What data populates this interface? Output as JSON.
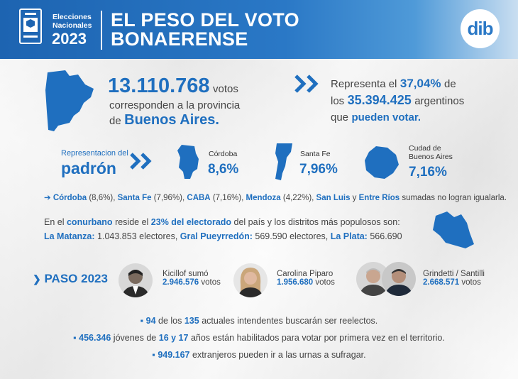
{
  "header": {
    "label_line1": "Elecciones",
    "label_line2": "Nacionales",
    "year": "2023",
    "title_line1": "EL PESO DEL VOTO",
    "title_line2": "BONAERENSE",
    "logo_text": "dib"
  },
  "votes": {
    "number": "13.110.768",
    "unit": "votos",
    "line2": "corresponden a la provincia",
    "line3_pre": "de",
    "province": "Buenos Aires."
  },
  "represent": {
    "pre": "Representa el",
    "percent": "37,04%",
    "post": "de",
    "total": "35.394.425",
    "total_post": "argentinos",
    "line3_pre": "que",
    "line3_bold": "pueden votar."
  },
  "padron": {
    "label_small": "Representacion del",
    "label_big": "padrón",
    "items": [
      {
        "name": "Córdoba",
        "percent": "8,6%"
      },
      {
        "name": "Santa Fe",
        "percent": "7,96%"
      },
      {
        "name_line1": "Cudad de",
        "name_line2": "Buenos Aires",
        "percent": "7,16%"
      }
    ]
  },
  "note": {
    "arrow": "➔",
    "parts": [
      "Córdoba",
      " (8,6%), ",
      "Santa Fe",
      " (7,96%), ",
      "CABA",
      " (7,16%), ",
      "Mendoza",
      " (4,22%), ",
      "San Luis",
      " y ",
      "Entre Ríos",
      " sumadas no logran igualarla."
    ]
  },
  "conurbano": {
    "l1_pre": "En el",
    "l1_b1": "conurbano",
    "l1_mid": "reside el",
    "l1_b2": "23% del electorado",
    "l1_post": "del país y los distritos más populosos son:",
    "d1_name": "La Matanza:",
    "d1_val": "1.043.853 electores,",
    "d2_name": "Gral Pueyrredón:",
    "d2_val": "569.590 electores,",
    "d3_name": "La Plata:",
    "d3_val": "566.690"
  },
  "paso": {
    "label": "PASO 2023",
    "candidates": [
      {
        "name": "Kicillof sumó",
        "votes": "2.946.576",
        "unit": "votos"
      },
      {
        "name": "Carolina Piparo",
        "votes": "1.956.680",
        "unit": "votos"
      },
      {
        "name": "Grindetti / Santilli",
        "votes": "2.668.571",
        "unit": "votos"
      }
    ]
  },
  "facts": [
    {
      "bullet": "▪",
      "b1": "94",
      "t1": "de los",
      "b2": "135",
      "t2": "actuales intendentes buscarán ser reelectos."
    },
    {
      "bullet": "▪",
      "b1": "456.346",
      "t1": "jóvenes de",
      "b2": "16 y 17",
      "t2": "años están habilitados para votar por primera vez en el territorio."
    },
    {
      "bullet": "▪",
      "b1": "949.167",
      "t1": "extranjeros pueden ir a las urnas a sufragar.",
      "b2": "",
      "t2": ""
    }
  ],
  "colors": {
    "primary": "#1f6fbf",
    "header_start": "#1d64b1",
    "text": "#444444"
  }
}
